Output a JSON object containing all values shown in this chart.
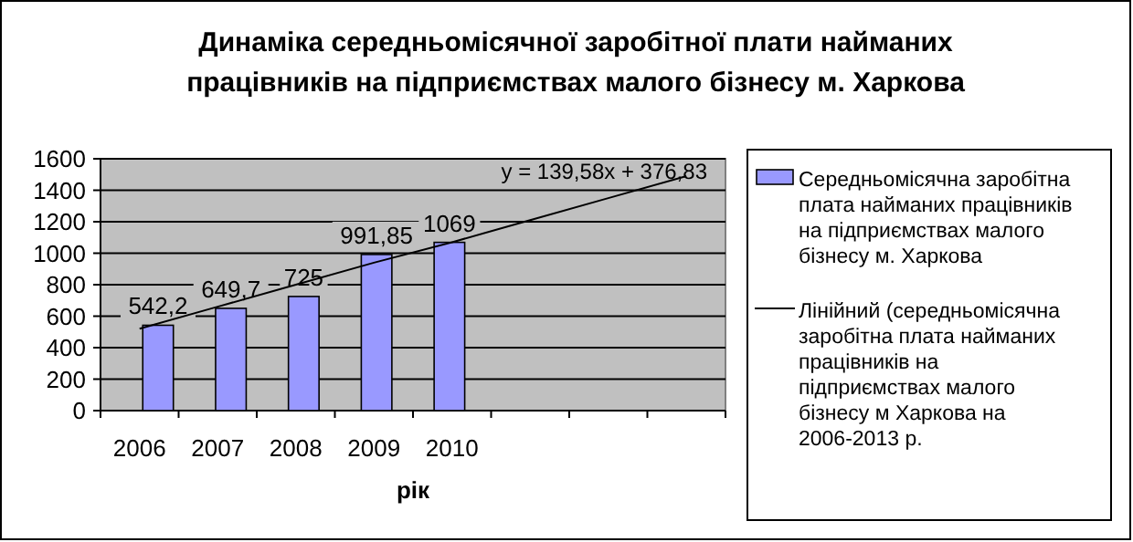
{
  "chart_data": {
    "type": "bar",
    "title": "Динаміка середньомісячної заробітної плати найманих працівників на підприємствах малого бізнесу м. Харкова",
    "xlabel": "рік",
    "categories": [
      "2006",
      "2007",
      "2008",
      "2009",
      "2010",
      null,
      null,
      null
    ],
    "series": [
      {
        "name": "Середньомісячна заробітна плата найманих працівників на підприємствах малого бізнесу м. Харкова",
        "color": "#9999ff",
        "values": [
          542.2,
          649.7,
          725,
          991.85,
          1069,
          null,
          null,
          null
        ],
        "value_labels": [
          "542,2",
          "649,7",
          "725",
          "991,85",
          "1069",
          null,
          null,
          null
        ]
      },
      {
        "type": "line",
        "name": "Лінійний (середньомісячна заробітна плата найманих працівників на підприємствах малого бізнесу м Харкова на 2006-2013 р.",
        "color": "#000000",
        "values": [
          520,
          660,
          800,
          940,
          1070,
          1210,
          1350,
          1490
        ],
        "marker": "none"
      }
    ],
    "annotations": [
      "y = 139,58x + 376,83"
    ],
    "ylim": [
      0,
      1600
    ],
    "yticks": [
      0,
      200,
      400,
      600,
      800,
      1000,
      1200,
      1400,
      1600
    ],
    "grid": "y",
    "legend": "right"
  }
}
